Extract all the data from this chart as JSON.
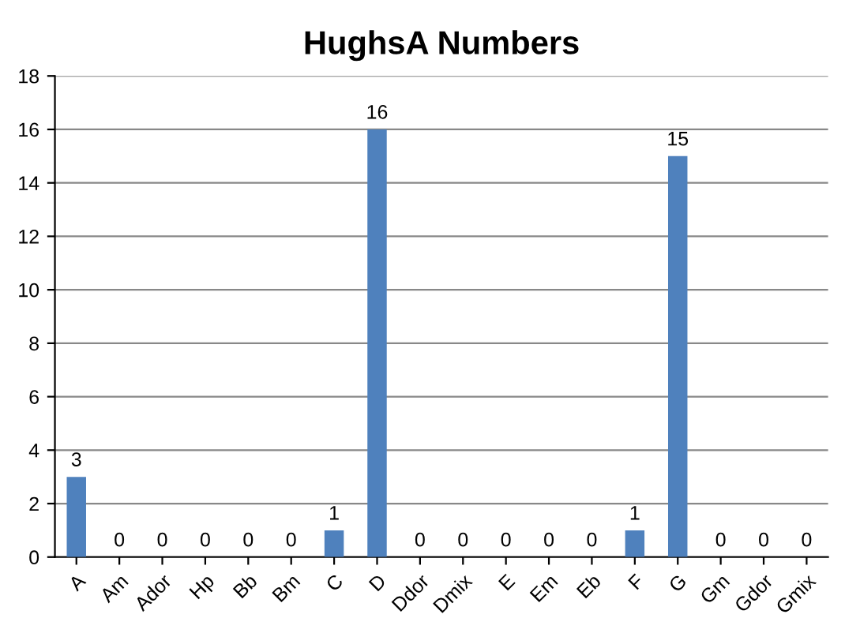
{
  "chart_data": {
    "type": "bar",
    "title": "HughsA Numbers",
    "categories": [
      "A",
      "Am",
      "Ador",
      "Hp",
      "Bb",
      "Bm",
      "C",
      "D",
      "Ddor",
      "Dmix",
      "E",
      "Em",
      "Eb",
      "F",
      "G",
      "Gm",
      "Gdor",
      "Gmix"
    ],
    "values": [
      3,
      0,
      0,
      0,
      0,
      0,
      1,
      16,
      0,
      0,
      0,
      0,
      0,
      1,
      15,
      0,
      0,
      0
    ],
    "color": "#4f81bd",
    "ylim": [
      0,
      18
    ],
    "yticks": [
      0,
      2,
      4,
      6,
      8,
      10,
      12,
      14,
      16,
      18
    ],
    "grid": "y",
    "data_labels": true,
    "legend": false
  }
}
